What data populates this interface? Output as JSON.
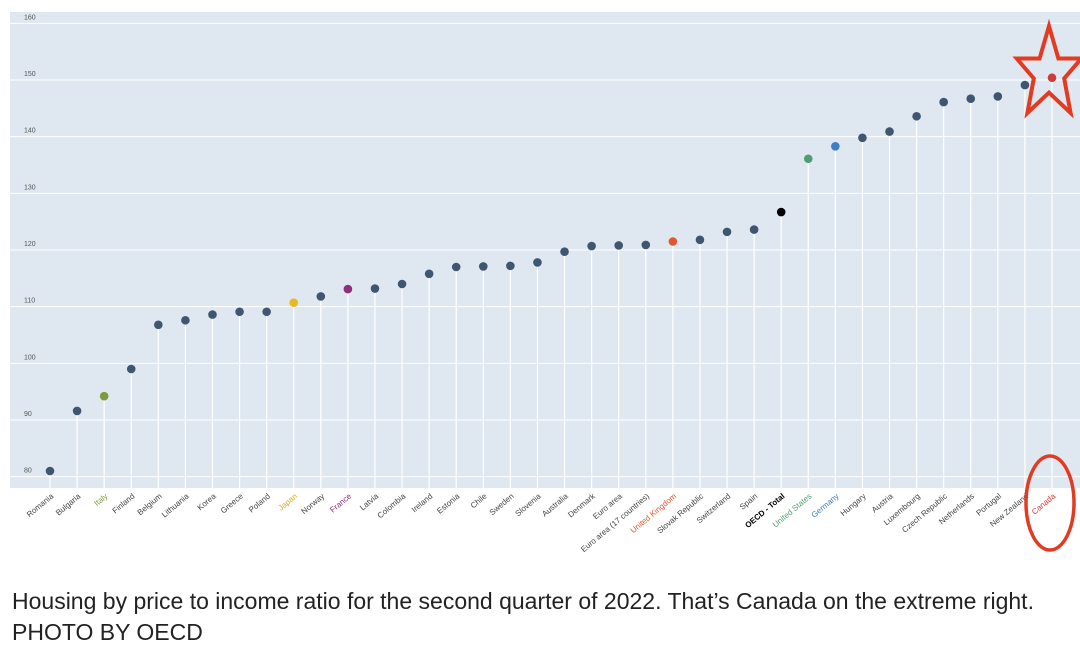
{
  "caption": "Housing by price to income ratio for the second quarter of 2022. That’s Canada on the extreme right. PHOTO BY OECD",
  "colors": {
    "plot_background": "#dfe8f0",
    "default_point": "#3e5670",
    "stem": "#ffffff",
    "highlight_annotation": "#e23b22"
  },
  "chart_data": {
    "type": "scatter",
    "title": "",
    "xlabel": "",
    "ylabel": "",
    "ylim": [
      78,
      162
    ],
    "y_ticks": [
      "80",
      "90",
      "100",
      "110",
      "120",
      "130",
      "140",
      "150",
      "160"
    ],
    "grid": "horizontal",
    "legend": "none",
    "categories": [
      "Romania",
      "Bulgaria",
      "Italy",
      "Finland",
      "Belgium",
      "Lithuania",
      "Korea",
      "Greece",
      "Poland",
      "Japan",
      "Norway",
      "France",
      "Latvia",
      "Colombia",
      "Ireland",
      "Estonia",
      "Chile",
      "Sweden",
      "Slovenia",
      "Australia",
      "Denmark",
      "Euro area",
      "Euro area (17 countries)",
      "United Kingdom",
      "Slovak Republic",
      "Switzerland",
      "Spain",
      "OECD - Total",
      "United States",
      "Germany",
      "Hungary",
      "Austria",
      "Luxembourg",
      "Czech Republic",
      "Netherlands",
      "Portugal",
      "New Zealand",
      "Canada"
    ],
    "values": [
      81,
      91.6,
      94.2,
      99,
      106.8,
      107.6,
      108.6,
      109.1,
      109.1,
      110.7,
      111.8,
      113.1,
      113.2,
      114,
      115.8,
      117,
      117.1,
      117.2,
      117.8,
      119.7,
      120.7,
      120.8,
      120.9,
      121.5,
      121.8,
      123.2,
      123.6,
      126.7,
      136.1,
      138.3,
      139.8,
      140.9,
      143.6,
      146.1,
      146.7,
      147.1,
      149.1,
      150.4
    ],
    "point_colors": [
      "#3e5670",
      "#3e5670",
      "#7d9b3c",
      "#3e5670",
      "#3e5670",
      "#3e5670",
      "#3e5670",
      "#3e5670",
      "#3e5670",
      "#e8b923",
      "#3e5670",
      "#8e2f7c",
      "#3e5670",
      "#3e5670",
      "#3e5670",
      "#3e5670",
      "#3e5670",
      "#3e5670",
      "#3e5670",
      "#3e5670",
      "#3e5670",
      "#3e5670",
      "#3e5670",
      "#e2582d",
      "#3e5670",
      "#3e5670",
      "#3e5670",
      "#000000",
      "#4c9f73",
      "#3d7ec6",
      "#3e5670",
      "#3e5670",
      "#3e5670",
      "#3e5670",
      "#3e5670",
      "#3e5670",
      "#3e5670",
      "#d03a3a"
    ],
    "label_colors": [
      "#444444",
      "#444444",
      "#7d9b3c",
      "#444444",
      "#444444",
      "#444444",
      "#444444",
      "#444444",
      "#444444",
      "#e0a81c",
      "#444444",
      "#8e2f7c",
      "#444444",
      "#444444",
      "#444444",
      "#444444",
      "#444444",
      "#444444",
      "#444444",
      "#444444",
      "#444444",
      "#444444",
      "#444444",
      "#e2582d",
      "#444444",
      "#444444",
      "#444444",
      "#000000",
      "#4c9f73",
      "#3d7ec6",
      "#444444",
      "#444444",
      "#444444",
      "#444444",
      "#444444",
      "#444444",
      "#444444",
      "#d03a3a"
    ],
    "label_bold": [
      "OECD - Total"
    ],
    "annotations": [
      "red star around the Canada point",
      "red circle around the Canada label"
    ]
  }
}
